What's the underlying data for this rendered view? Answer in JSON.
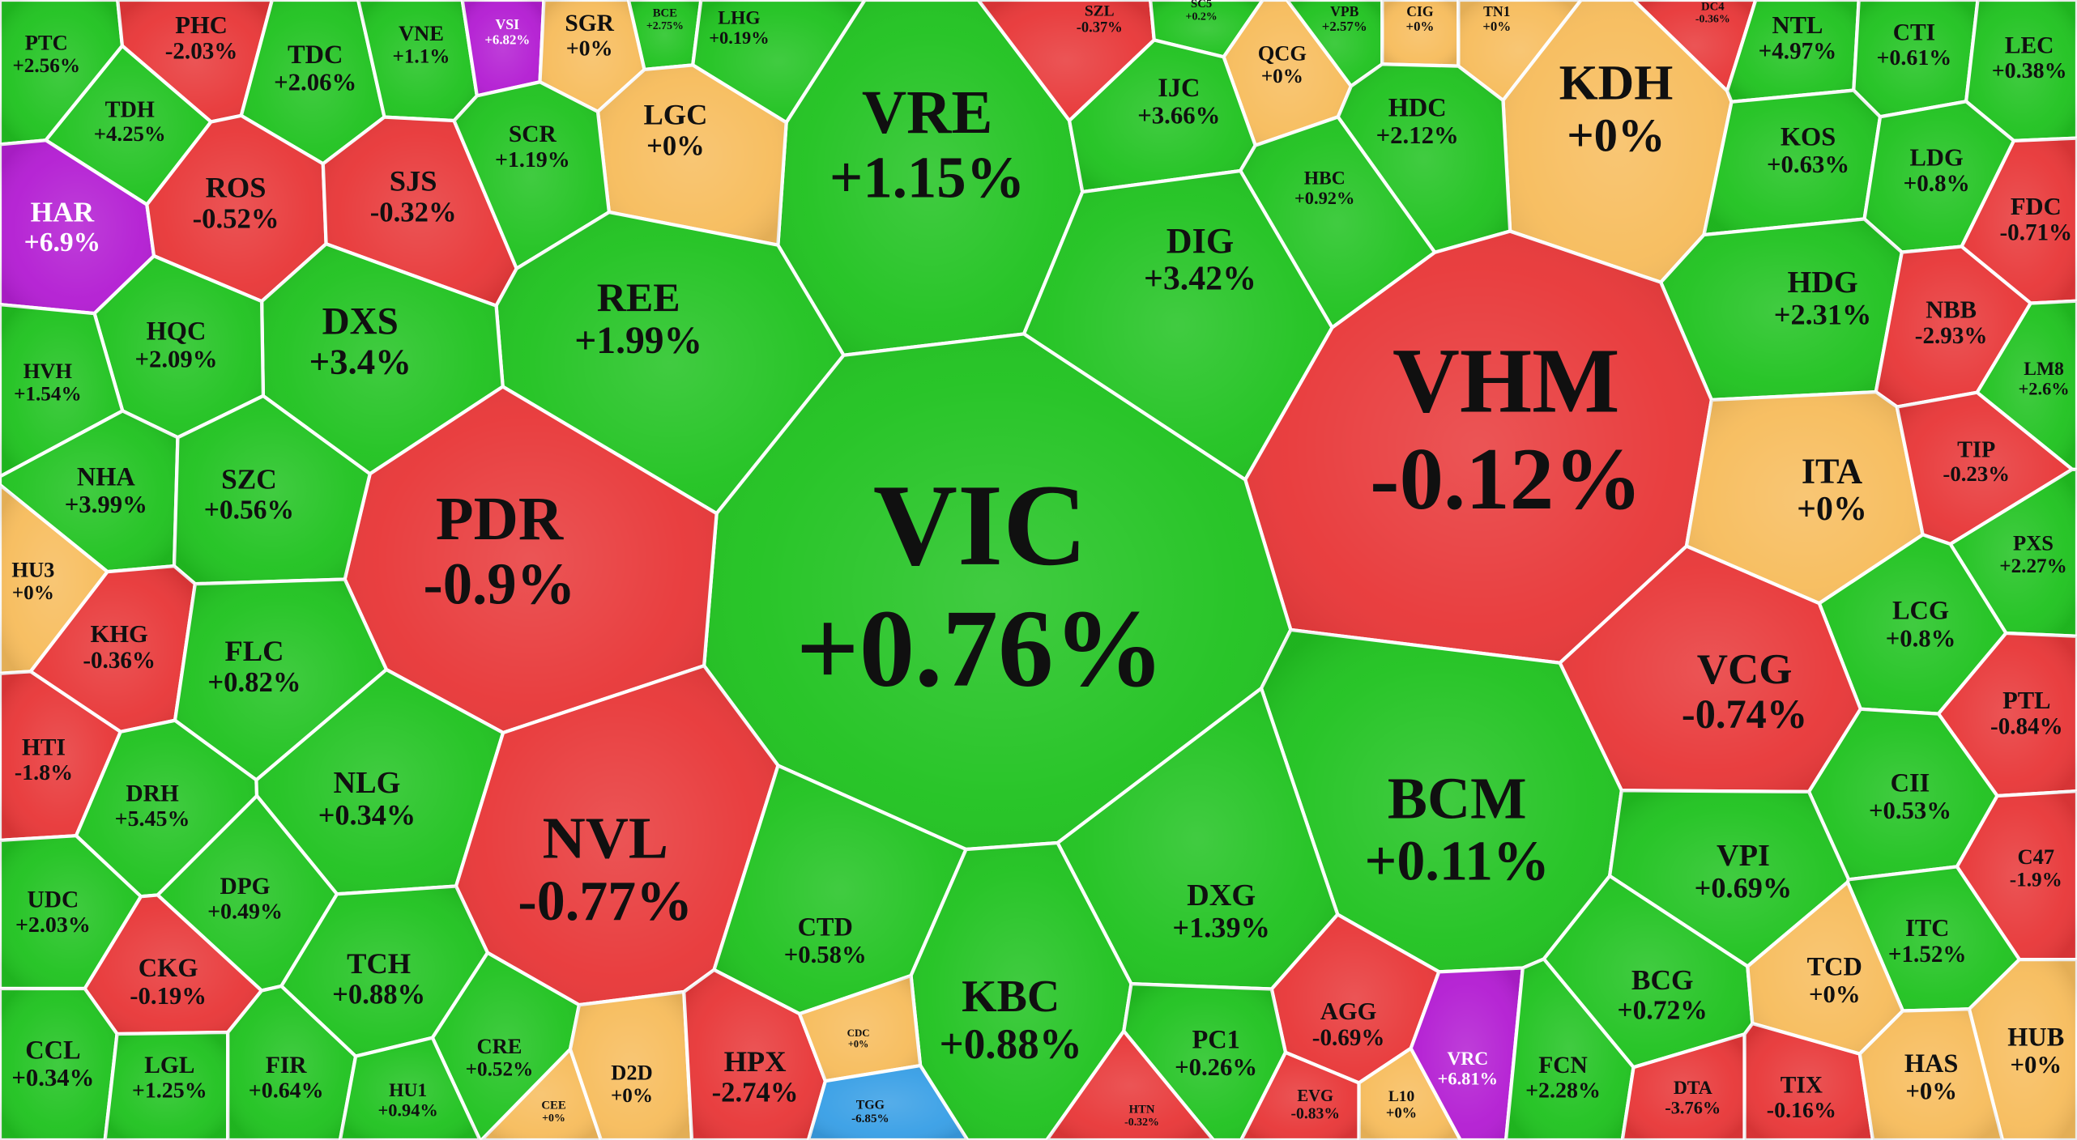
{
  "chart_data": {
    "type": "treemap",
    "categories": [
      "PTC",
      "PHC",
      "TDC",
      "VNE",
      "VSI",
      "SGR",
      "BCE",
      "LHG",
      "VRE",
      "SZL",
      "SC5",
      "QCG",
      "VPB",
      "CIG",
      "TN1",
      "DC4",
      "KDH",
      "NTL",
      "CTI",
      "LEC",
      "TDH",
      "LGC",
      "IJC",
      "HDC",
      "KOS",
      "LDG",
      "HAR",
      "ROS",
      "SJS",
      "SCR",
      "HBC",
      "FDC",
      "DIG",
      "REE",
      "DXS",
      "HQC",
      "HVH",
      "HDG",
      "NBB",
      "LM8",
      "VHM",
      "VIC",
      "PDR",
      "NHA",
      "SZC",
      "ITA",
      "TIP",
      "PXS",
      "HU3",
      "KHG",
      "FLC",
      "LCG",
      "VCG",
      "PTL",
      "HTI",
      "DRH",
      "NLG",
      "NVL",
      "BCM",
      "CII",
      "C47",
      "VPI",
      "UDC",
      "DPG",
      "CTD",
      "DXG",
      "ITC",
      "CKG",
      "TCH",
      "KBC",
      "AGG",
      "BCG",
      "TCD",
      "HUB",
      "CCL",
      "LGL",
      "FIR",
      "CRE",
      "HU1",
      "CEE",
      "D2D",
      "HPX",
      "CDC",
      "TGG",
      "PC1",
      "HTN",
      "EVG",
      "L10",
      "VRC",
      "FCN",
      "DTA",
      "TIX",
      "HAS"
    ],
    "values": [
      2.56,
      -2.03,
      2.06,
      1.1,
      6.82,
      0,
      2.75,
      0.19,
      1.15,
      -0.37,
      0.2,
      0,
      2.57,
      0,
      0,
      -0.36,
      0,
      4.97,
      0.61,
      0.38,
      4.25,
      0,
      3.66,
      2.12,
      0.63,
      0.8,
      6.9,
      -0.52,
      -0.32,
      1.19,
      0.92,
      -0.71,
      3.42,
      1.99,
      3.4,
      2.09,
      1.54,
      2.31,
      -2.93,
      2.6,
      -0.12,
      0.76,
      -0.9,
      3.99,
      0.56,
      0,
      -0.23,
      2.27,
      0,
      -0.36,
      0.82,
      0.8,
      -0.74,
      -0.84,
      -1.8,
      5.45,
      0.34,
      -0.77,
      0.11,
      0.53,
      -1.9,
      0.69,
      2.03,
      0.49,
      0.58,
      1.39,
      1.52,
      -0.19,
      0.88,
      0.88,
      -0.69,
      0.72,
      0,
      0,
      0.34,
      1.25,
      0.64,
      0.52,
      0.94,
      0,
      0,
      -2.74,
      0,
      -6.85,
      0.26,
      -0.32,
      -0.83,
      0,
      6.81,
      2.28,
      -3.76,
      -0.16,
      0
    ],
    "value_labels": [
      "+2.56%",
      "-2.03%",
      "+2.06%",
      "+1.1%",
      "+6.82%",
      "+0%",
      "+2.75%",
      "+0.19%",
      "+1.15%",
      "-0.37%",
      "+0.2%",
      "+0%",
      "+2.57%",
      "+0%",
      "+0%",
      "-0.36%",
      "+0%",
      "+4.97%",
      "+0.61%",
      "+0.38%",
      "+4.25%",
      "+0%",
      "+3.66%",
      "+2.12%",
      "+0.63%",
      "+0.8%",
      "+6.9%",
      "-0.52%",
      "-0.32%",
      "+1.19%",
      "+0.92%",
      "-0.71%",
      "+3.42%",
      "+1.99%",
      "+3.4%",
      "+2.09%",
      "+1.54%",
      "+2.31%",
      "-2.93%",
      "+2.6%",
      "-0.12%",
      "+0.76%",
      "-0.9%",
      "+3.99%",
      "+0.56%",
      "+0%",
      "-0.23%",
      "+2.27%",
      "+0%",
      "-0.36%",
      "+0.82%",
      "+0.8%",
      "-0.74%",
      "-0.84%",
      "-1.8%",
      "+5.45%",
      "+0.34%",
      "-0.77%",
      "+0.11%",
      "+0.53%",
      "-1.9%",
      "+0.69%",
      "+2.03%",
      "+0.49%",
      "+0.58%",
      "+1.39%",
      "+1.52%",
      "-0.19%",
      "+0.88%",
      "+0.88%",
      "-0.69%",
      "+0.72%",
      "+0%",
      "+0%",
      "+0.34%",
      "+1.25%",
      "+0.64%",
      "+0.52%",
      "+0.94%",
      "+0%",
      "+0%",
      "-2.74%",
      "+0%",
      "-6.85%",
      "+0.26%",
      "-0.32%",
      "-0.83%",
      "+0%",
      "+6.81%",
      "+2.28%",
      "-3.76%",
      "-0.16%",
      "+0%"
    ],
    "colors": [
      "#22c322",
      "#e8393a",
      "#22c322",
      "#22c322",
      "#b41fd3",
      "#f7bd5e",
      "#22c322",
      "#22c322",
      "#22c322",
      "#e8393a",
      "#22c322",
      "#f7bd5e",
      "#22c322",
      "#f7bd5e",
      "#f7bd5e",
      "#e8393a",
      "#f7bd5e",
      "#22c322",
      "#22c322",
      "#22c322",
      "#22c322",
      "#f7bd5e",
      "#22c322",
      "#22c322",
      "#22c322",
      "#22c322",
      "#b41fd3",
      "#e8393a",
      "#e8393a",
      "#22c322",
      "#22c322",
      "#e8393a",
      "#22c322",
      "#22c322",
      "#22c322",
      "#22c322",
      "#22c322",
      "#22c322",
      "#e8393a",
      "#22c322",
      "#e8393a",
      "#22c322",
      "#e8393a",
      "#22c322",
      "#22c322",
      "#f7bd5e",
      "#e8393a",
      "#22c322",
      "#f7bd5e",
      "#e8393a",
      "#22c322",
      "#22c322",
      "#e8393a",
      "#e8393a",
      "#e8393a",
      "#22c322",
      "#22c322",
      "#e8393a",
      "#22c322",
      "#22c322",
      "#e8393a",
      "#22c322",
      "#22c322",
      "#22c322",
      "#22c322",
      "#22c322",
      "#22c322",
      "#e8393a",
      "#22c322",
      "#22c322",
      "#e8393a",
      "#22c322",
      "#f7bd5e",
      "#f7bd5e",
      "#22c322",
      "#22c322",
      "#22c322",
      "#22c322",
      "#22c322",
      "#f7bd5e",
      "#f7bd5e",
      "#e8393a",
      "#f7bd5e",
      "#3aa0e6",
      "#22c322",
      "#e8393a",
      "#e8393a",
      "#f7bd5e",
      "#b41fd3",
      "#22c322",
      "#e8393a",
      "#e8393a",
      "#f7bd5e"
    ]
  }
}
